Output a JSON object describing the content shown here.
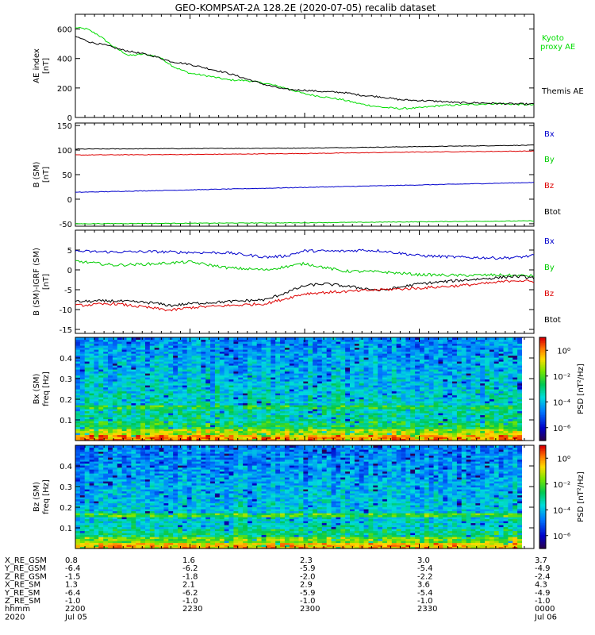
{
  "title": "GEO-KOMPSAT-2A 128.2E (2020-07-05) recalib dataset",
  "chart_data": [
    {
      "type": "line",
      "panel": "ae_index",
      "ylabel": [
        "AE index",
        "[nT]"
      ],
      "ylim": [
        0,
        700
      ],
      "yticks": [
        "0",
        "200",
        "400",
        "600"
      ],
      "yticks_values": [
        0,
        200,
        400,
        600
      ],
      "xlim": [
        0,
        120
      ],
      "series": [
        {
          "name": "Kyoto proxy AE",
          "legend": [
            "Kyoto",
            "proxy AE"
          ],
          "color": "#00dd00",
          "x": [
            0,
            3,
            6,
            10,
            14,
            18,
            22,
            26,
            30,
            35,
            40,
            45,
            50,
            55,
            60,
            65,
            70,
            75,
            80,
            85,
            90,
            95,
            100,
            105,
            110,
            115,
            120
          ],
          "y": [
            610,
            600,
            560,
            480,
            420,
            430,
            410,
            340,
            300,
            280,
            255,
            250,
            230,
            200,
            160,
            140,
            120,
            90,
            70,
            60,
            65,
            80,
            85,
            90,
            95,
            90,
            85
          ]
        },
        {
          "name": "Themis AE",
          "legend": [
            "Themis AE"
          ],
          "color": "#000000",
          "x": [
            0,
            4,
            8,
            12,
            16,
            20,
            25,
            30,
            35,
            40,
            45,
            50,
            55,
            60,
            65,
            70,
            75,
            80,
            85,
            90,
            95,
            100,
            105,
            110,
            115,
            120
          ],
          "y": [
            550,
            510,
            490,
            460,
            440,
            420,
            380,
            360,
            330,
            300,
            260,
            220,
            190,
            185,
            175,
            170,
            150,
            140,
            120,
            115,
            110,
            100,
            100,
            95,
            92,
            90
          ]
        }
      ]
    },
    {
      "type": "line",
      "panel": "b_sm",
      "ylabel": [
        "B (SM)",
        "[nT]"
      ],
      "ylim": [
        -55,
        155
      ],
      "yticks": [
        "-50",
        "0",
        "50",
        "100",
        "150"
      ],
      "yticks_values": [
        -50,
        0,
        50,
        100,
        150
      ],
      "xlim": [
        0,
        120
      ],
      "legend": [
        "Bx",
        "By",
        "Bz",
        "Btot"
      ],
      "series": [
        {
          "name": "Btot",
          "color": "#000000",
          "x": [
            0,
            30,
            60,
            90,
            120
          ],
          "y": [
            102,
            103,
            104,
            107,
            110
          ]
        },
        {
          "name": "Bz",
          "color": "#dd0000",
          "x": [
            0,
            30,
            60,
            90,
            120
          ],
          "y": [
            90,
            91,
            93,
            96,
            98
          ]
        },
        {
          "name": "Bx",
          "color": "#0000cc",
          "x": [
            0,
            30,
            60,
            90,
            120
          ],
          "y": [
            14,
            19,
            24,
            29,
            34
          ]
        },
        {
          "name": "By",
          "color": "#00cc00",
          "x": [
            0,
            30,
            60,
            90,
            120
          ],
          "y": [
            -50,
            -49,
            -48,
            -46,
            -44
          ]
        }
      ]
    },
    {
      "type": "line",
      "panel": "b_minus_igrf",
      "ylabel": [
        "B (SM)-IGRF (SM)",
        "[nT]"
      ],
      "ylim": [
        -16,
        10
      ],
      "yticks": [
        "-15",
        "-10",
        "-5",
        "0",
        "5"
      ],
      "yticks_values": [
        -15,
        -10,
        -5,
        0,
        5
      ],
      "xlim": [
        0,
        120
      ],
      "legend": [
        "Bx",
        "By",
        "Bz",
        "Btot"
      ],
      "series": [
        {
          "name": "Bx",
          "color": "#0000cc",
          "x": [
            0,
            10,
            20,
            30,
            40,
            50,
            55,
            60,
            70,
            75,
            80,
            90,
            100,
            110,
            115,
            120
          ],
          "y": [
            4.7,
            4.5,
            4.6,
            4.4,
            4.3,
            3.2,
            3.5,
            4.8,
            4.7,
            5.0,
            4.8,
            3.6,
            3.2,
            3.0,
            3.1,
            3.6
          ]
        },
        {
          "name": "By",
          "color": "#00cc00",
          "x": [
            0,
            10,
            20,
            30,
            40,
            50,
            60,
            70,
            80,
            90,
            100,
            110,
            120
          ],
          "y": [
            2.2,
            1.2,
            1.5,
            2.0,
            0.5,
            0.0,
            1.6,
            -0.3,
            -0.5,
            -1.2,
            -1.4,
            -1.3,
            -1.5
          ]
        },
        {
          "name": "Btot",
          "color": "#000000",
          "x": [
            0,
            10,
            20,
            25,
            30,
            40,
            50,
            60,
            65,
            70,
            80,
            90,
            100,
            110,
            115,
            120
          ],
          "y": [
            -8,
            -7.8,
            -8.3,
            -9.0,
            -8.5,
            -8.0,
            -7.5,
            -4.0,
            -3.5,
            -4.0,
            -5.2,
            -3.5,
            -2.7,
            -2.0,
            -1.6,
            -2.0
          ]
        },
        {
          "name": "Bz",
          "color": "#dd0000",
          "x": [
            0,
            10,
            20,
            25,
            30,
            40,
            50,
            60,
            65,
            70,
            80,
            90,
            100,
            110,
            115,
            120
          ],
          "y": [
            -9,
            -8.5,
            -9.6,
            -10.2,
            -9.5,
            -9.0,
            -8.5,
            -6.0,
            -5.7,
            -5.5,
            -5.0,
            -4.6,
            -4.0,
            -3.2,
            -2.6,
            -3.0
          ]
        }
      ]
    },
    {
      "type": "heatmap",
      "panel": "bx_psd",
      "ylabel": [
        "Bx (SM)",
        "freq [Hz]"
      ],
      "ylim": [
        0,
        0.5
      ],
      "yticks": [
        "0.1",
        "0.2",
        "0.3",
        "0.4"
      ],
      "yticks_values": [
        0.1,
        0.2,
        0.3,
        0.4
      ],
      "colorbar_label": "PSD [nT²/Hz]",
      "colorbar_ticks": [
        "10⁰",
        "10⁻²",
        "10⁻⁴",
        "10⁻⁶"
      ],
      "colorbar_log_range": [
        -7,
        1
      ]
    },
    {
      "type": "heatmap",
      "panel": "bz_psd",
      "ylabel": [
        "Bz (SM)",
        "freq [Hz]"
      ],
      "ylim": [
        0,
        0.5
      ],
      "yticks": [
        "0.1",
        "0.2",
        "0.3",
        "0.4"
      ],
      "yticks_values": [
        0.1,
        0.2,
        0.3,
        0.4
      ],
      "colorbar_label": "PSD [nT²/Hz]",
      "colorbar_ticks": [
        "10⁰",
        "10⁻²",
        "10⁻⁴",
        "10⁻⁶"
      ],
      "colorbar_log_range": [
        -7,
        1
      ]
    }
  ],
  "x_axis": {
    "row_labels": [
      "X_RE_GSM",
      "Y_RE_GSM",
      "Z_RE_GSM",
      "X_RE_SM",
      "Y_RE_SM",
      "Z_RE_SM",
      "hhmm",
      "2020"
    ],
    "columns": [
      [
        "0.8",
        "-6.4",
        "-1.5",
        "1.3",
        "-6.4",
        "-1.0",
        "2200",
        "Jul 05"
      ],
      [
        "1.6",
        "-6.2",
        "-1.8",
        "2.1",
        "-6.2",
        "-1.0",
        "2230",
        ""
      ],
      [
        "2.3",
        "-5.9",
        "-2.0",
        "2.9",
        "-5.9",
        "-1.0",
        "2300",
        ""
      ],
      [
        "3.0",
        "-5.4",
        "-2.2",
        "3.6",
        "-5.4",
        "-1.0",
        "2330",
        ""
      ],
      [
        "3.7",
        "-4.9",
        "-2.4",
        "4.3",
        "-4.9",
        "-1.0",
        "0000",
        "Jul 06"
      ]
    ]
  }
}
